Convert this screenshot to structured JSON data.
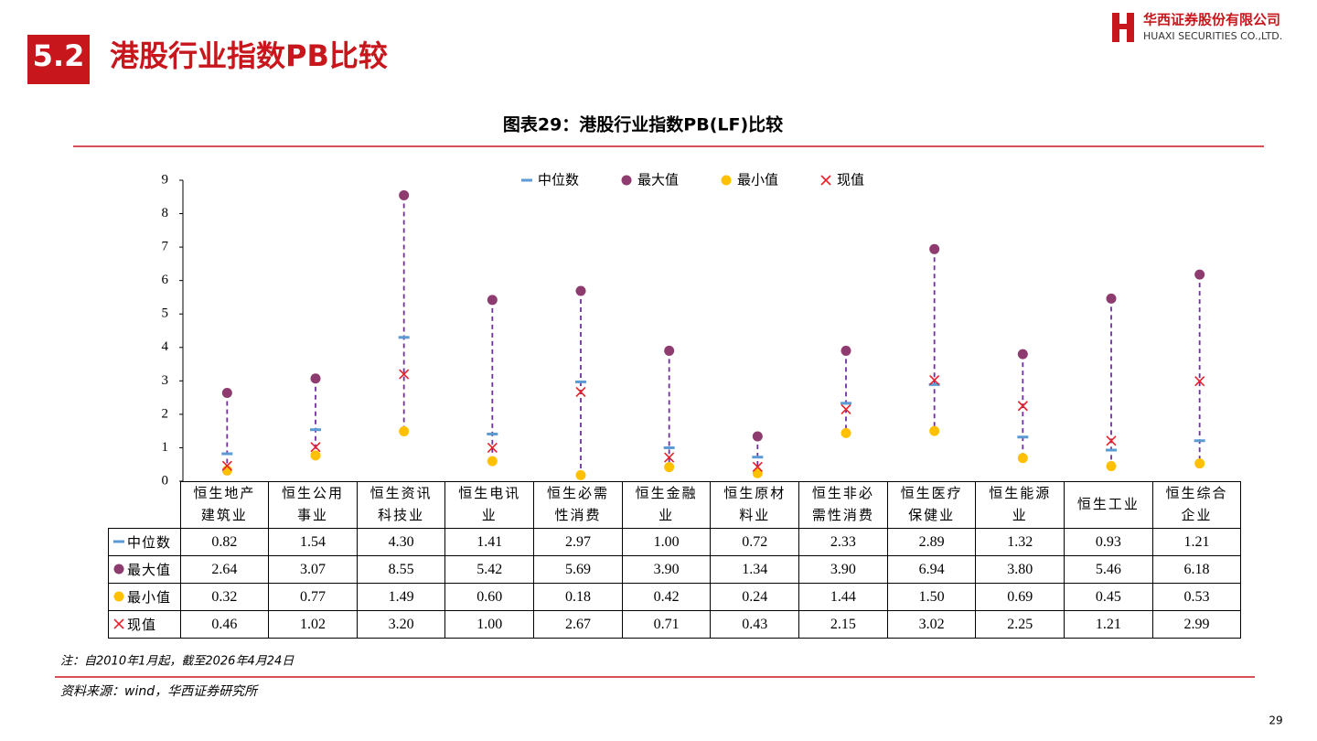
{
  "header": {
    "section": "5.2",
    "title": "港股行业指数PB比较",
    "logo_cn": "华西证券股份有限公司",
    "logo_en": "HUAXI SECURITIES CO.,LTD."
  },
  "chart_data": {
    "type": "range-dot",
    "title": "图表29：港股行业指数PB(LF)比较",
    "categories": [
      "恒生地产建筑业",
      "恒生公用事业",
      "恒生资讯科技业",
      "恒生电讯业",
      "恒生必需性消费",
      "恒生金融业",
      "恒生原材料业",
      "恒生非必需性消费",
      "恒生医疗保健业",
      "恒生能源业",
      "恒生工业",
      "恒生综合企业"
    ],
    "series": [
      {
        "name": "中位数",
        "color": "#5B9BD5",
        "marker": "dash",
        "values": [
          0.82,
          1.54,
          4.3,
          1.41,
          2.97,
          1.0,
          0.72,
          2.33,
          2.89,
          1.32,
          0.93,
          1.21
        ],
        "value_labels": [
          "0.82",
          "1.54",
          "4.30",
          "1.41",
          "2.97",
          "1.00",
          "0.72",
          "2.33",
          "2.89",
          "1.32",
          "0.93",
          "1.21"
        ]
      },
      {
        "name": "最大值",
        "color": "#8E3B6F",
        "marker": "circle",
        "values": [
          2.64,
          3.07,
          8.55,
          5.42,
          5.69,
          3.9,
          1.34,
          3.9,
          6.94,
          3.8,
          5.46,
          6.18
        ],
        "value_labels": [
          "2.64",
          "3.07",
          "8.55",
          "5.42",
          "5.69",
          "3.90",
          "1.34",
          "3.90",
          "6.94",
          "3.80",
          "5.46",
          "6.18"
        ]
      },
      {
        "name": "最小值",
        "color": "#FFC000",
        "marker": "circle",
        "values": [
          0.32,
          0.77,
          1.49,
          0.6,
          0.18,
          0.42,
          0.24,
          1.44,
          1.5,
          0.69,
          0.45,
          0.53
        ],
        "value_labels": [
          "0.32",
          "0.77",
          "1.49",
          "0.60",
          "0.18",
          "0.42",
          "0.24",
          "1.44",
          "1.50",
          "0.69",
          "0.45",
          "0.53"
        ]
      },
      {
        "name": "现值",
        "color": "#E8202A",
        "marker": "cross",
        "values": [
          0.46,
          1.02,
          3.2,
          1.0,
          2.67,
          0.71,
          0.43,
          2.15,
          3.02,
          2.25,
          1.21,
          2.99
        ],
        "value_labels": [
          "0.46",
          "1.02",
          "3.20",
          "1.00",
          "2.67",
          "0.71",
          "0.43",
          "2.15",
          "3.02",
          "2.25",
          "1.21",
          "2.99"
        ]
      }
    ],
    "range_color": "#7030A0",
    "ylim": [
      0,
      9
    ],
    "yticks": [
      0,
      1,
      2,
      3,
      4,
      5,
      6,
      7,
      8,
      9
    ],
    "legend": "top"
  },
  "footer": {
    "note": "注：自2010年1月起，截至2026年4月24日",
    "source": "资料来源：wind，华西证券研究所",
    "page": "29"
  }
}
